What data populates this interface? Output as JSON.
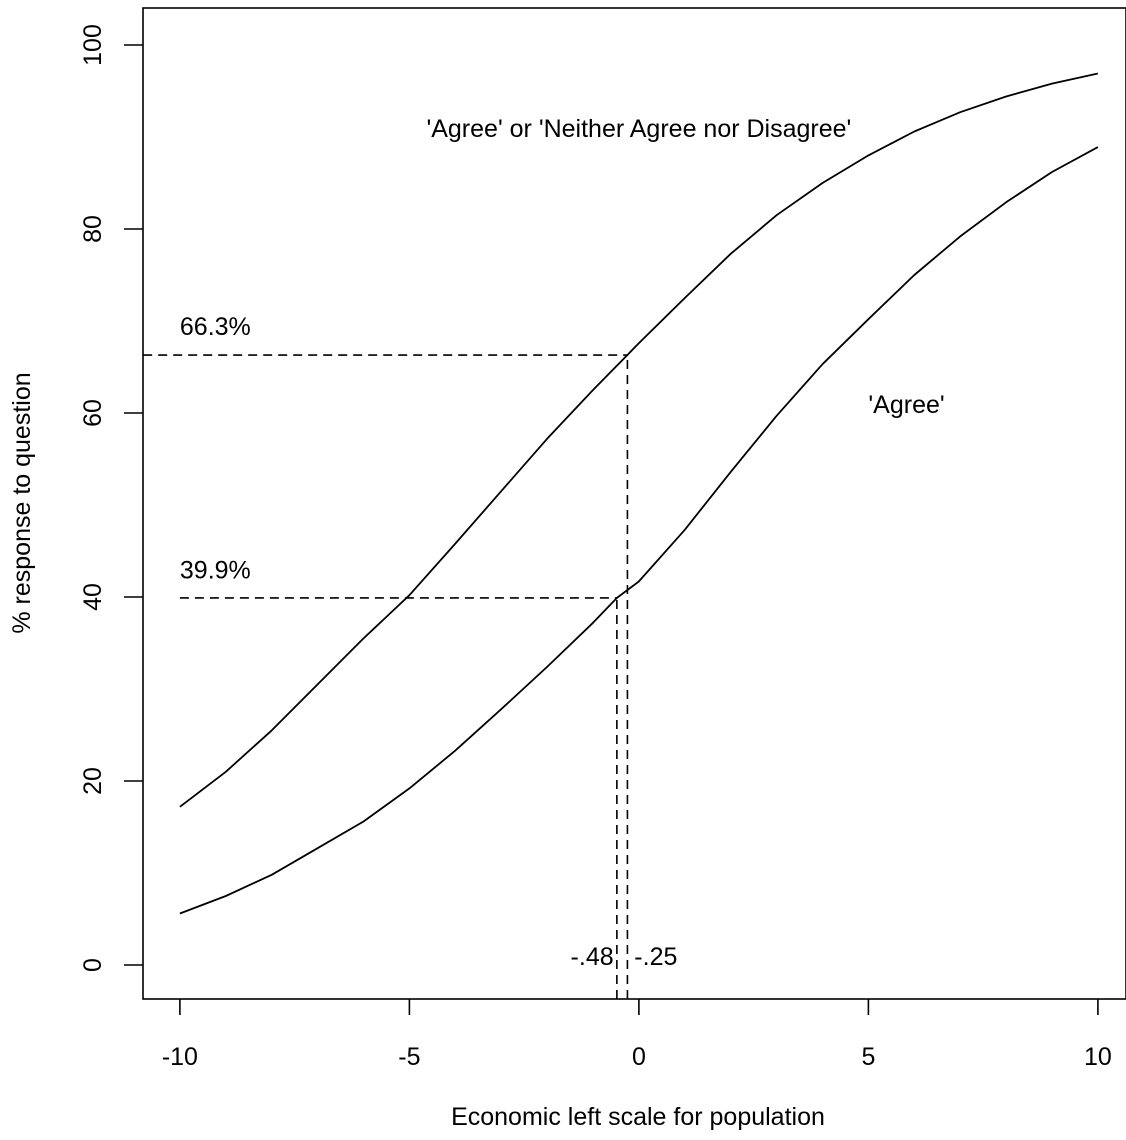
{
  "chart_data": {
    "type": "line",
    "title": "",
    "xlabel": "Economic left scale for population",
    "ylabel": "% response to question",
    "xlim": [
      -10.8,
      10.6
    ],
    "ylim": [
      -4,
      104
    ],
    "x_ticks": [
      -10,
      -5,
      0,
      5,
      10
    ],
    "x_tick_labels": [
      "-10",
      "-5",
      "0",
      "5",
      "10"
    ],
    "y_ticks": [
      0,
      20,
      40,
      60,
      80,
      100
    ],
    "y_tick_labels": [
      "0",
      "20",
      "40",
      "60",
      "80",
      "100"
    ],
    "grid": false,
    "series": [
      {
        "name": "'Agree' or 'Neither Agree nor Disagree'",
        "x": [
          -10,
          -9,
          -8,
          -7,
          -6,
          -5,
          -4,
          -3,
          -2,
          -1,
          -0.25,
          0,
          1,
          2,
          3,
          4,
          5,
          6,
          7,
          8,
          9,
          10
        ],
        "values": [
          17.2,
          21.0,
          25.5,
          30.5,
          35.5,
          40.2,
          45.8,
          51.5,
          57.2,
          62.5,
          66.3,
          67.6,
          72.5,
          77.3,
          81.5,
          85.0,
          88.0,
          90.6,
          92.7,
          94.4,
          95.8,
          96.9
        ]
      },
      {
        "name": "'Agree'",
        "x": [
          -10,
          -9,
          -8,
          -7,
          -6,
          -5,
          -4,
          -3,
          -2,
          -1,
          -0.48,
          0,
          1,
          2,
          3,
          4,
          5,
          6,
          7,
          8,
          9,
          10
        ],
        "values": [
          5.6,
          7.5,
          9.8,
          12.7,
          15.6,
          19.2,
          23.3,
          27.8,
          32.4,
          37.2,
          39.9,
          41.7,
          47.3,
          53.6,
          59.7,
          65.3,
          70.2,
          75.0,
          79.2,
          82.9,
          86.2,
          88.9
        ]
      }
    ],
    "reference_lines": [
      {
        "kind": "horizontal",
        "y": 66.3,
        "x_from": -10.8,
        "x_to": -0.25
      },
      {
        "kind": "horizontal",
        "y": 39.9,
        "x_from": -10,
        "x_to": -0.48
      },
      {
        "kind": "vertical",
        "x": -0.25,
        "y_from": -4,
        "y_to": 66.3
      },
      {
        "kind": "vertical",
        "x": -0.48,
        "y_from": -4,
        "y_to": 39.9
      }
    ],
    "annotations": [
      {
        "text": "'Agree' or 'Neither Agree nor Disagree'",
        "x": 0,
        "y": 90
      },
      {
        "text": "'Agree'",
        "x": 5,
        "y": 60
      },
      {
        "text": "66.3%",
        "x": -10,
        "y": 68.5
      },
      {
        "text": "39.9%",
        "x": -10,
        "y": 42
      },
      {
        "text": "-.48",
        "x": -0.55,
        "y": 0
      },
      {
        "text": "-.25",
        "x": -0.1,
        "y": 0
      }
    ]
  }
}
